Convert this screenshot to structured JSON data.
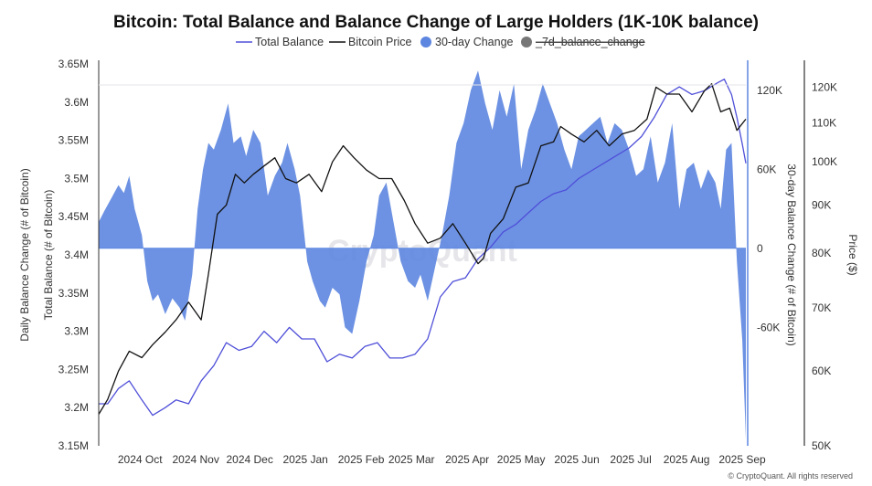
{
  "chart_data": {
    "type": "line",
    "title": "Bitcoin: Total Balance and Balance Change of Large Holders (1K-10K balance)",
    "legend": {
      "position": "top",
      "entries": [
        {
          "label": "Total Balance",
          "color": "#4f4fd9",
          "marker": "line"
        },
        {
          "label": "Bitcoin Price",
          "color": "#111111",
          "marker": "line"
        },
        {
          "label": "30-day Change",
          "color": "#5d86e0",
          "marker": "circle"
        },
        {
          "label": "_7d_balance_change",
          "color": "#777777",
          "marker": "circle",
          "disabled": true
        }
      ]
    },
    "axes": {
      "x": {
        "ticks": [
          "2024 Oct",
          "2024 Nov",
          "2024 Dec",
          "2025 Jan",
          "2025 Feb",
          "2025 Mar",
          "2025 Apr",
          "2025 May",
          "2025 Jun",
          "2025 Jul",
          "2025 Aug",
          "2025 Sep"
        ]
      },
      "y_left": {
        "label": "Daily Balance Change (# of Bitcoin)",
        "secondary_label": "Total Balance (# of Bitcoin)",
        "ylim": [
          3150000,
          3650000
        ],
        "ticks": [
          "3.15M",
          "3.2M",
          "3.25M",
          "3.3M",
          "3.35M",
          "3.4M",
          "3.45M",
          "3.5M",
          "3.55M",
          "3.6M",
          "3.65M"
        ]
      },
      "y_change": {
        "label": "30-day Balance Change (# of Bitcoin)",
        "ylim": [
          -150000,
          140000
        ],
        "ticks": [
          "120K",
          "60K",
          "0",
          "-60K"
        ]
      },
      "y_price": {
        "label": "Price ($)",
        "scale": "log",
        "ylim": [
          50000,
          127000
        ],
        "ticks": [
          "120K",
          "110K",
          "100K",
          "90K",
          "80K",
          "70K",
          "60K",
          "50K"
        ]
      }
    },
    "x_range": [
      "2024-09-07",
      "2025-09-02"
    ],
    "series": [
      {
        "name": "30-day Change",
        "axis": "y_change",
        "kind": "area",
        "color": "#5d86e0",
        "x": [
          "2024-09-07",
          "2024-09-10",
          "2024-09-14",
          "2024-09-18",
          "2024-09-21",
          "2024-09-24",
          "2024-09-27",
          "2024-10-01",
          "2024-10-04",
          "2024-10-07",
          "2024-10-10",
          "2024-10-14",
          "2024-10-18",
          "2024-10-22",
          "2024-10-25",
          "2024-10-29",
          "2024-11-01",
          "2024-11-04",
          "2024-11-07",
          "2024-11-10",
          "2024-11-14",
          "2024-11-18",
          "2024-11-21",
          "2024-11-25",
          "2024-11-28",
          "2024-12-02",
          "2024-12-06",
          "2024-12-10",
          "2024-12-14",
          "2024-12-18",
          "2024-12-21",
          "2024-12-25",
          "2024-12-28",
          "2025-01-01",
          "2025-01-04",
          "2025-01-08",
          "2025-01-11",
          "2025-01-15",
          "2025-01-19",
          "2025-01-22",
          "2025-01-26",
          "2025-01-30",
          "2025-02-03",
          "2025-02-07",
          "2025-02-10",
          "2025-02-14",
          "2025-02-18",
          "2025-02-22",
          "2025-02-26",
          "2025-03-02",
          "2025-03-05",
          "2025-03-09",
          "2025-03-13",
          "2025-03-17",
          "2025-03-21",
          "2025-03-25",
          "2025-03-29",
          "2025-04-02",
          "2025-04-06",
          "2025-04-10",
          "2025-04-14",
          "2025-04-18",
          "2025-04-22",
          "2025-04-26",
          "2025-04-30",
          "2025-05-04",
          "2025-05-08",
          "2025-05-12",
          "2025-05-16",
          "2025-05-20",
          "2025-05-24",
          "2025-05-28",
          "2025-06-01",
          "2025-06-05",
          "2025-06-09",
          "2025-06-13",
          "2025-06-17",
          "2025-06-21",
          "2025-06-25",
          "2025-06-29",
          "2025-07-03",
          "2025-07-07",
          "2025-07-11",
          "2025-07-15",
          "2025-07-19",
          "2025-07-23",
          "2025-07-27",
          "2025-07-31",
          "2025-08-04",
          "2025-08-08",
          "2025-08-12",
          "2025-08-16",
          "2025-08-19",
          "2025-08-22",
          "2025-08-25",
          "2025-08-28",
          "2025-08-31",
          "2025-09-02"
        ],
        "values": [
          20000,
          28000,
          38000,
          48000,
          42000,
          55000,
          30000,
          10000,
          -25000,
          -40000,
          -35000,
          -50000,
          -38000,
          -45000,
          -55000,
          -20000,
          30000,
          60000,
          80000,
          75000,
          90000,
          110000,
          80000,
          85000,
          70000,
          90000,
          80000,
          40000,
          55000,
          65000,
          80000,
          60000,
          40000,
          -10000,
          -25000,
          -40000,
          -45000,
          -30000,
          -35000,
          -60000,
          -65000,
          -40000,
          -10000,
          10000,
          40000,
          50000,
          20000,
          -10000,
          -25000,
          -30000,
          -20000,
          -40000,
          -15000,
          10000,
          40000,
          80000,
          95000,
          120000,
          135000,
          110000,
          90000,
          120000,
          100000,
          125000,
          60000,
          90000,
          105000,
          125000,
          110000,
          95000,
          75000,
          60000,
          85000,
          90000,
          95000,
          100000,
          80000,
          95000,
          90000,
          75000,
          55000,
          60000,
          85000,
          50000,
          65000,
          95000,
          30000,
          60000,
          65000,
          45000,
          60000,
          50000,
          30000,
          75000,
          80000,
          -10000,
          -70000,
          -145000
        ]
      },
      {
        "name": "Total Balance",
        "axis": "y_left",
        "kind": "line",
        "color": "#4f4fd9",
        "x": [
          "2024-09-07",
          "2024-09-12",
          "2024-09-18",
          "2024-09-24",
          "2024-10-01",
          "2024-10-07",
          "2024-10-14",
          "2024-10-20",
          "2024-10-27",
          "2024-11-03",
          "2024-11-10",
          "2024-11-17",
          "2024-11-24",
          "2024-12-01",
          "2024-12-08",
          "2024-12-15",
          "2024-12-22",
          "2024-12-29",
          "2025-01-05",
          "2025-01-12",
          "2025-01-19",
          "2025-01-26",
          "2025-02-02",
          "2025-02-09",
          "2025-02-16",
          "2025-02-23",
          "2025-03-02",
          "2025-03-09",
          "2025-03-16",
          "2025-03-23",
          "2025-03-30",
          "2025-04-06",
          "2025-04-13",
          "2025-04-20",
          "2025-04-27",
          "2025-05-04",
          "2025-05-11",
          "2025-05-18",
          "2025-05-25",
          "2025-06-01",
          "2025-06-08",
          "2025-06-15",
          "2025-06-22",
          "2025-06-29",
          "2025-07-06",
          "2025-07-13",
          "2025-07-20",
          "2025-07-27",
          "2025-08-03",
          "2025-08-10",
          "2025-08-17",
          "2025-08-21",
          "2025-08-25",
          "2025-08-28",
          "2025-08-31",
          "2025-09-02"
        ],
        "values": [
          3205000,
          3205000,
          3225000,
          3235000,
          3210000,
          3190000,
          3200000,
          3210000,
          3205000,
          3235000,
          3255000,
          3285000,
          3275000,
          3280000,
          3300000,
          3285000,
          3305000,
          3290000,
          3290000,
          3260000,
          3270000,
          3265000,
          3280000,
          3285000,
          3265000,
          3265000,
          3270000,
          3290000,
          3345000,
          3365000,
          3370000,
          3395000,
          3410000,
          3430000,
          3440000,
          3455000,
          3470000,
          3480000,
          3485000,
          3500000,
          3510000,
          3520000,
          3530000,
          3540000,
          3555000,
          3580000,
          3610000,
          3620000,
          3610000,
          3615000,
          3625000,
          3630000,
          3610000,
          3580000,
          3545000,
          3520000
        ]
      },
      {
        "name": "Bitcoin Price",
        "axis": "y_price",
        "kind": "line",
        "color": "#111111",
        "x": [
          "2024-09-07",
          "2024-09-12",
          "2024-09-18",
          "2024-09-24",
          "2024-10-01",
          "2024-10-07",
          "2024-10-14",
          "2024-10-20",
          "2024-10-27",
          "2024-11-03",
          "2024-11-07",
          "2024-11-12",
          "2024-11-17",
          "2024-11-22",
          "2024-11-27",
          "2024-12-02",
          "2024-12-08",
          "2024-12-14",
          "2024-12-20",
          "2024-12-26",
          "2025-01-02",
          "2025-01-09",
          "2025-01-15",
          "2025-01-21",
          "2025-01-27",
          "2025-02-03",
          "2025-02-10",
          "2025-02-17",
          "2025-02-24",
          "2025-03-02",
          "2025-03-09",
          "2025-03-16",
          "2025-03-23",
          "2025-03-30",
          "2025-04-06",
          "2025-04-09",
          "2025-04-13",
          "2025-04-20",
          "2025-04-27",
          "2025-05-04",
          "2025-05-11",
          "2025-05-18",
          "2025-05-22",
          "2025-05-28",
          "2025-06-04",
          "2025-06-11",
          "2025-06-18",
          "2025-06-25",
          "2025-07-02",
          "2025-07-09",
          "2025-07-14",
          "2025-07-20",
          "2025-07-27",
          "2025-08-03",
          "2025-08-10",
          "2025-08-14",
          "2025-08-19",
          "2025-08-24",
          "2025-08-28",
          "2025-09-02"
        ],
        "values": [
          54000,
          56000,
          60000,
          63000,
          62000,
          64000,
          66000,
          68000,
          71000,
          68000,
          76000,
          88000,
          90000,
          97000,
          95000,
          97000,
          99000,
          101000,
          96000,
          95000,
          97000,
          93000,
          100000,
          104000,
          101000,
          98000,
          96000,
          96000,
          91000,
          86000,
          82000,
          83000,
          86000,
          82000,
          78000,
          79000,
          84000,
          87000,
          94000,
          95000,
          104000,
          105000,
          109000,
          107000,
          105000,
          108000,
          104000,
          107000,
          108000,
          111000,
          120000,
          118000,
          118000,
          113000,
          119000,
          121000,
          113000,
          114000,
          108000,
          111000
        ]
      }
    ],
    "watermark": "CryptoQuant",
    "copyright": "© CryptoQuant. All rights reserved"
  }
}
